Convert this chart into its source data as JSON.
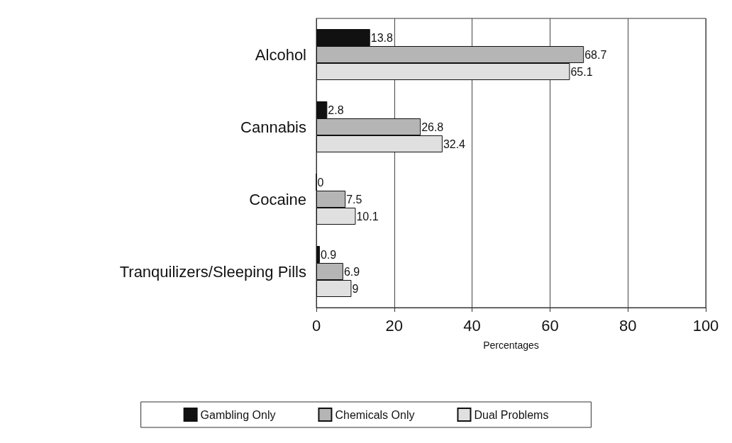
{
  "chart_data": {
    "type": "bar",
    "orientation": "horizontal",
    "xlabel": "Percentages",
    "categories": [
      "Alcohol",
      "Cannabis",
      "Cocaine",
      "Tranquilizers/Sleeping Pills"
    ],
    "series": [
      {
        "name": "Gambling Only",
        "color": "#111111",
        "values": [
          13.8,
          2.8,
          0,
          0.9
        ]
      },
      {
        "name": "Chemicals Only",
        "color": "#b5b5b5",
        "values": [
          68.7,
          26.8,
          7.5,
          6.9
        ]
      },
      {
        "name": "Dual Problems",
        "color": "#e0e0e0",
        "values": [
          65.1,
          32.4,
          10.1,
          9
        ]
      }
    ],
    "xlim": [
      0,
      100
    ],
    "xticks": [
      0,
      20,
      40,
      60,
      80,
      100
    ],
    "grid": "x",
    "legend": "bottom",
    "data_labels": true
  }
}
